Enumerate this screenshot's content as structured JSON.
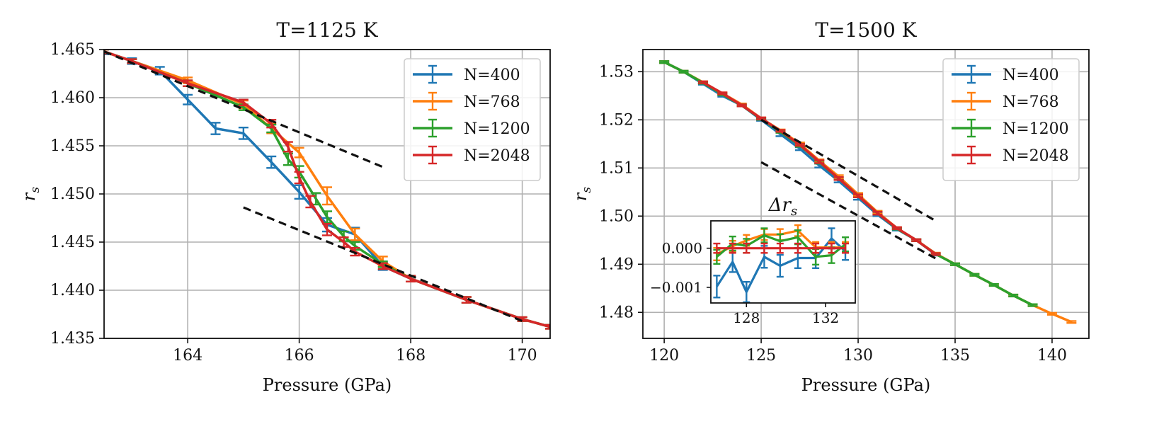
{
  "chart_data": [
    {
      "type": "line",
      "title": "T=1125 K",
      "xlabel": "Pressure (GPa)",
      "ylabel_base": "r",
      "ylabel_sub": "s",
      "xlim": [
        162.5,
        170.5
      ],
      "ylim": [
        1.435,
        1.465
      ],
      "xticks": [
        164,
        166,
        168,
        170
      ],
      "xtick_labels": [
        "164",
        "166",
        "168",
        "170"
      ],
      "yticks": [
        1.435,
        1.44,
        1.445,
        1.45,
        1.455,
        1.46,
        1.465
      ],
      "ytick_labels": [
        "1.435",
        "1.440",
        "1.445",
        "1.450",
        "1.455",
        "1.460",
        "1.465"
      ],
      "grid": true,
      "legend_position": "top-right",
      "series": [
        {
          "name": "N=400",
          "color": "#1f77b4",
          "x": [
            162.5,
            163.0,
            163.5,
            164.0,
            164.5,
            165.0,
            165.5,
            166.0,
            166.5,
            167.0,
            167.5,
            168.0,
            169.0,
            170.0,
            170.5
          ],
          "y": [
            1.4648,
            1.4638,
            1.4628,
            1.4598,
            1.4568,
            1.4563,
            1.4533,
            1.4502,
            1.4468,
            1.4458,
            1.4425,
            1.4412,
            1.439,
            1.437,
            1.4362
          ],
          "err": [
            0.0003,
            0.0003,
            0.0004,
            0.0005,
            0.0006,
            0.0006,
            0.0006,
            0.0007,
            0.0007,
            0.0007,
            0.0004,
            0.0003,
            0.0003,
            0.0002,
            0.0002
          ]
        },
        {
          "name": "N=768",
          "color": "#ff7f0e",
          "x": [
            162.5,
            163.0,
            164.0,
            165.0,
            165.5,
            166.0,
            166.5,
            167.0,
            167.5,
            168.0,
            169.0,
            170.0,
            170.5
          ],
          "y": [
            1.4648,
            1.4638,
            1.4618,
            1.4593,
            1.4568,
            1.4543,
            1.4498,
            1.4458,
            1.443,
            1.4412,
            1.439,
            1.437,
            1.4362
          ],
          "err": [
            0.0002,
            0.0002,
            0.0003,
            0.0004,
            0.0005,
            0.0005,
            0.0009,
            0.0006,
            0.0005,
            0.0003,
            0.0003,
            0.0002,
            0.0002
          ]
        },
        {
          "name": "N=1200",
          "color": "#2ca02c",
          "x": [
            162.5,
            163.0,
            164.0,
            165.0,
            165.5,
            165.8,
            166.0,
            166.3,
            166.5,
            166.8,
            167.0,
            167.5,
            168.0,
            169.0,
            170.0,
            170.5
          ],
          "y": [
            1.4648,
            1.4638,
            1.4615,
            1.459,
            1.4568,
            1.4536,
            1.4523,
            1.4495,
            1.4476,
            1.4456,
            1.4446,
            1.4427,
            1.4412,
            1.439,
            1.437,
            1.4362
          ],
          "err": [
            0.0002,
            0.0002,
            0.0003,
            0.0003,
            0.0004,
            0.0006,
            0.0006,
            0.0006,
            0.0006,
            0.0005,
            0.0004,
            0.0003,
            0.0003,
            0.0003,
            0.0002,
            0.0002
          ]
        },
        {
          "name": "N=2048",
          "color": "#d62728",
          "x": [
            162.5,
            163.0,
            164.0,
            165.0,
            165.5,
            165.8,
            166.0,
            166.2,
            166.5,
            166.8,
            167.0,
            167.5,
            168.0,
            169.0,
            170.0,
            170.5
          ],
          "y": [
            1.4648,
            1.4638,
            1.4615,
            1.4595,
            1.4573,
            1.4549,
            1.4517,
            1.4492,
            1.4463,
            1.445,
            1.444,
            1.4425,
            1.4412,
            1.439,
            1.437,
            1.4362
          ],
          "err": [
            0.0002,
            0.0002,
            0.0003,
            0.0003,
            0.0004,
            0.0005,
            0.0006,
            0.0006,
            0.0006,
            0.0005,
            0.0004,
            0.0003,
            0.0003,
            0.0003,
            0.0002,
            0.0002
          ]
        }
      ],
      "dashed_lines": [
        {
          "x": [
            162.5,
            167.5
          ],
          "y": [
            1.4648,
            1.4528
          ]
        },
        {
          "x": [
            165.0,
            170.0
          ],
          "y": [
            1.4486,
            1.4368
          ]
        }
      ]
    },
    {
      "type": "line",
      "title": "T=1500 K",
      "xlabel": "Pressure (GPa)",
      "ylabel_base": "r",
      "ylabel_sub": "s",
      "xlim": [
        118.9,
        141.9
      ],
      "ylim": [
        1.4746,
        1.5346
      ],
      "xticks": [
        120,
        125,
        130,
        135,
        140
      ],
      "xtick_labels": [
        "120",
        "125",
        "130",
        "135",
        "140"
      ],
      "yticks": [
        1.48,
        1.49,
        1.5,
        1.51,
        1.52,
        1.53
      ],
      "ytick_labels": [
        "1.48",
        "1.49",
        "1.50",
        "1.51",
        "1.52",
        "1.53"
      ],
      "grid": true,
      "legend_position": "top-right",
      "series": [
        {
          "name": "N=400",
          "color": "#1f77b4",
          "x": [
            120,
            121,
            122,
            123,
            124,
            125,
            126,
            127,
            128,
            129,
            130,
            131,
            132,
            133,
            134
          ],
          "y": [
            1.532,
            1.53,
            1.5275,
            1.525,
            1.523,
            1.52,
            1.517,
            1.514,
            1.5105,
            1.5073,
            1.5038,
            1.5003,
            1.4973,
            1.495,
            1.492
          ],
          "err": [
            0.0002,
            0.0002,
            0.0002,
            0.0002,
            0.0002,
            0.0002,
            0.0004,
            0.0003,
            0.0004,
            0.0003,
            0.0004,
            0.0003,
            0.0003,
            0.0002,
            0.0002
          ]
        },
        {
          "name": "N=768",
          "color": "#ff7f0e",
          "x": [
            120,
            121,
            122,
            123,
            124,
            125,
            126,
            127,
            128,
            129,
            130,
            131,
            132,
            133,
            134,
            135,
            136,
            137,
            138,
            139,
            140,
            141
          ],
          "y": [
            1.532,
            1.53,
            1.5278,
            1.5255,
            1.5232,
            1.5203,
            1.5178,
            1.515,
            1.5115,
            1.5082,
            1.5045,
            1.5008,
            1.4975,
            1.495,
            1.4922,
            1.49,
            1.4878,
            1.4857,
            1.4835,
            1.4815,
            1.4797,
            1.478
          ],
          "err": [
            0.0002,
            0.0002,
            0.0002,
            0.0002,
            0.0002,
            0.0002,
            0.0002,
            0.0003,
            0.0003,
            0.0003,
            0.0003,
            0.0003,
            0.0002,
            0.0002,
            0.0002,
            0.0002,
            0.0002,
            0.0002,
            0.0002,
            0.0002,
            0.0002,
            0.0002
          ]
        },
        {
          "name": "N=1200",
          "color": "#2ca02c",
          "x": [
            120,
            121,
            122,
            123,
            124,
            125,
            126,
            127,
            128,
            129,
            130,
            131,
            132,
            133,
            134,
            135,
            136,
            137,
            138,
            139
          ],
          "y": [
            1.532,
            1.53,
            1.5277,
            1.5253,
            1.523,
            1.5202,
            1.5175,
            1.5147,
            1.5112,
            1.5078,
            1.5042,
            1.5006,
            1.4974,
            1.495,
            1.4921,
            1.49,
            1.4878,
            1.4857,
            1.4835,
            1.4815
          ],
          "err": [
            0.0002,
            0.0002,
            0.0002,
            0.0002,
            0.0002,
            0.0002,
            0.0002,
            0.0003,
            0.0003,
            0.0003,
            0.0003,
            0.0003,
            0.0002,
            0.0002,
            0.0002,
            0.0002,
            0.0002,
            0.0002,
            0.0002,
            0.0002
          ]
        },
        {
          "name": "N=2048",
          "color": "#d62728",
          "x": [
            122,
            123,
            124,
            125,
            126,
            127,
            128,
            129,
            130,
            131,
            132,
            133,
            134
          ],
          "y": [
            1.5278,
            1.5255,
            1.523,
            1.5203,
            1.5177,
            1.5148,
            1.5113,
            1.5078,
            1.5042,
            1.5006,
            1.4975,
            1.495,
            1.4921
          ],
          "err": [
            0.0002,
            0.0002,
            0.0002,
            0.0002,
            0.0002,
            0.0002,
            0.0003,
            0.0003,
            0.0003,
            0.0003,
            0.0002,
            0.0002,
            0.0002
          ]
        }
      ],
      "dashed_lines": [
        {
          "x": [
            125,
            134
          ],
          "y": [
            1.52,
            1.499
          ]
        },
        {
          "x": [
            125,
            134
          ],
          "y": [
            1.5112,
            1.4912
          ]
        }
      ],
      "inset": {
        "title_base": "Δr",
        "title_sub": "s",
        "xlim": [
          126.2,
          133.5
        ],
        "ylim": [
          -0.0014,
          0.0007
        ],
        "xticks": [
          128,
          132
        ],
        "xtick_labels": [
          "128",
          "132"
        ],
        "yticks": [
          -0.001,
          0.0
        ],
        "ytick_labels": [
          "−0.001",
          "0.000"
        ],
        "grid": false,
        "series": [
          {
            "name": "N=400",
            "color": "#1f77b4",
            "x": [
              126.5,
              127.3,
              128.0,
              128.9,
              129.7,
              130.6,
              131.5,
              132.3,
              133.0
            ],
            "y": [
              -0.00098,
              -0.00035,
              -0.00112,
              -0.00022,
              -0.00045,
              -0.00025,
              -0.00025,
              0.00025,
              -8e-05
            ],
            "err": [
              0.00028,
              0.00026,
              0.00026,
              0.00028,
              0.00028,
              0.00026,
              0.00026,
              0.00026,
              0.00022
            ]
          },
          {
            "name": "N=768",
            "color": "#ff7f0e",
            "x": [
              126.5,
              127.3,
              128.0,
              128.9,
              129.7,
              130.6,
              131.5,
              132.3,
              133.0
            ],
            "y": [
              -0.00015,
              5e-05,
              0.0002,
              0.00035,
              0.00035,
              0.00045,
              2e-05,
              2e-05,
              2e-05
            ],
            "err": [
              0.00016,
              0.00014,
              0.00014,
              0.00014,
              0.00014,
              0.00014,
              0.00014,
              0.00014,
              0.00014
            ]
          },
          {
            "name": "N=1200",
            "color": "#2ca02c",
            "x": [
              126.5,
              127.3,
              128.0,
              128.9,
              129.7,
              130.6,
              131.5,
              132.3,
              133.0
            ],
            "y": [
              -0.00022,
              0.00012,
              6e-05,
              0.00033,
              0.00018,
              0.00028,
              -0.00022,
              -0.00018,
              0.0001
            ],
            "err": [
              0.00018,
              0.00018,
              0.00018,
              0.00018,
              0.00018,
              0.00018,
              0.0002,
              0.0002,
              0.00018
            ]
          },
          {
            "name": "N=2048",
            "color": "#d62728",
            "x": [
              126.5,
              127.3,
              128.0,
              128.9,
              129.7,
              130.6,
              131.5,
              132.3,
              133.0
            ],
            "y": [
              0.0,
              0.0,
              0.0,
              0.0,
              0.0,
              0.0,
              0.0,
              0.0,
              0.0
            ],
            "err": [
              0.00012,
              0.00012,
              0.00012,
              0.00012,
              0.00012,
              0.00012,
              0.00012,
              0.00012,
              0.00012
            ]
          }
        ]
      }
    }
  ]
}
